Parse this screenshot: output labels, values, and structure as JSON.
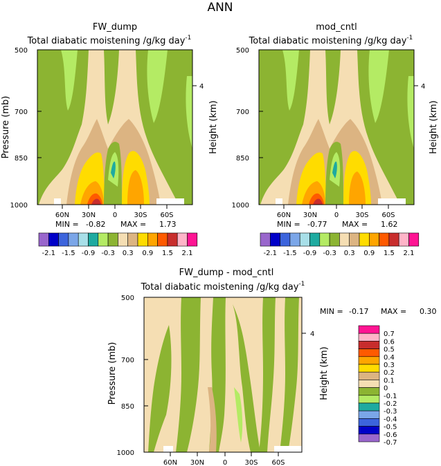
{
  "page": {
    "title": "ANN"
  },
  "colors": {
    "levels": [
      "#9966CC",
      "#0000C8",
      "#3C64DC",
      "#7BA6E8",
      "#A8DFE8",
      "#1EAAA0",
      "#B4EB64",
      "#8CB432",
      "#F5DEB3",
      "#DCB482",
      "#FFDC00",
      "#FFA500",
      "#FF5A00",
      "#C82D2D",
      "#FFB4C8",
      "#FF1493"
    ],
    "diff_levels": [
      "#9966CC",
      "#0000C8",
      "#3C64DC",
      "#7BA6E8",
      "#1EAAA0",
      "#B4EB64",
      "#8CB432",
      "#F5DEB3",
      "#DCB482",
      "#FFDC00",
      "#FFA500",
      "#FF5A00",
      "#C82D2D",
      "#FFB4C8",
      "#FF1493"
    ]
  },
  "chart_data": [
    {
      "id": "fw_dump",
      "type": "heatmap",
      "title": "FW_dump",
      "subtitle": "Total diabatic moistening",
      "units": "g/kg day",
      "units_exp": "-1",
      "ylabel": "Pressure (mb)",
      "ylabel_right": "Height (km)",
      "x_ticks": [
        "60N",
        "30N",
        "0",
        "30S",
        "60S"
      ],
      "y_ticks": [
        "500",
        "700",
        "850",
        "1000"
      ],
      "right_ticks": [
        "4"
      ],
      "stats": {
        "min_label": "MIN =",
        "min": "-0.82",
        "max_label": "MAX =",
        "max": "1.73"
      },
      "legend_labels": [
        "-2.1",
        "-1.5",
        "-0.9",
        "-0.3",
        "0.3",
        "0.9",
        "1.5",
        "2.1"
      ],
      "xlim": [
        90,
        -90
      ],
      "ylim": [
        1000,
        500
      ]
    },
    {
      "id": "mod_cntl",
      "type": "heatmap",
      "title": "mod_cntl",
      "subtitle": "Total diabatic moistening",
      "units": "g/kg day",
      "units_exp": "-1",
      "ylabel": "Pressure (mb)",
      "ylabel_right": "Height (km)",
      "x_ticks": [
        "60N",
        "30N",
        "0",
        "30S",
        "60S"
      ],
      "y_ticks": [
        "500",
        "700",
        "850",
        "1000"
      ],
      "right_ticks": [
        "4"
      ],
      "stats": {
        "min_label": "MIN =",
        "min": "-0.77",
        "max_label": "MAX =",
        "max": "1.62"
      },
      "legend_labels": [
        "-2.1",
        "-1.5",
        "-0.9",
        "-0.3",
        "0.3",
        "0.9",
        "1.5",
        "2.1"
      ],
      "xlim": [
        90,
        -90
      ],
      "ylim": [
        1000,
        500
      ]
    },
    {
      "id": "diff",
      "type": "heatmap",
      "title": "FW_dump - mod_cntl",
      "subtitle": "Total diabatic moistening",
      "units": "g/kg day",
      "units_exp": "-1",
      "ylabel": "Pressure (mb)",
      "ylabel_right": "Height (km)",
      "x_ticks": [
        "60N",
        "30N",
        "0",
        "30S",
        "60S"
      ],
      "y_ticks": [
        "500",
        "700",
        "850",
        "1000"
      ],
      "right_ticks": [
        "4"
      ],
      "stats": {
        "min_label": "MIN =",
        "min": "-0.17",
        "max_label": "MAX =",
        "max": "0.30"
      },
      "legend_labels": [
        "0.7",
        "0.6",
        "0.5",
        "0.4",
        "0.3",
        "0.2",
        "0.1",
        "0",
        "-0.1",
        "-0.2",
        "-0.3",
        "-0.4",
        "-0.5",
        "-0.6",
        "-0.7"
      ],
      "xlim": [
        90,
        -90
      ],
      "ylim": [
        1000,
        500
      ]
    }
  ]
}
